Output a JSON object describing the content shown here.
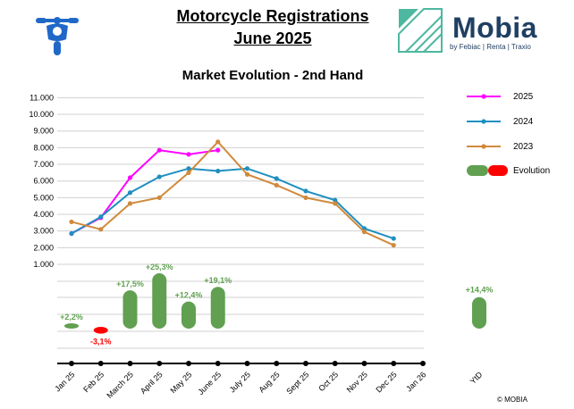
{
  "header": {
    "title_line1": "Motorcycle Registrations",
    "title_line2": "June 2025",
    "brand_name": "Mobia",
    "brand_tagline": "by Febiac | Renta | Traxio",
    "motorcycle_icon": "motorcycle-front-icon",
    "brand_icon": "mobia-logo-icon"
  },
  "footer": {
    "copyright": "© MOBIA"
  },
  "colors": {
    "y2025": "#ff00ff",
    "y2024": "#1f8fc0",
    "y2023": "#d08a3c",
    "positive": "#60a050",
    "negative": "#ff0000",
    "brand": "#1f3f63",
    "brand_accent": "#4db8a0"
  },
  "chart_data": {
    "type": "line",
    "title": "Market Evolution - 2nd Hand",
    "categories": [
      "Jan 25",
      "Feb 25",
      "March 25",
      "April 25",
      "May 25",
      "June 25",
      "July 25",
      "Aug 25",
      "Sept 25",
      "Oct 25",
      "Nov 25",
      "Dec 25",
      "Jan 26"
    ],
    "ylim": [
      0,
      11000
    ],
    "yticks": [
      "1.000",
      "2.000",
      "3.000",
      "4.000",
      "5.000",
      "6.000",
      "7.000",
      "8.000",
      "9.000",
      "10.000",
      "11.000"
    ],
    "grid": true,
    "legend_position": "right",
    "series": [
      {
        "name": "2025",
        "values": [
          2850,
          3800,
          6200,
          7850,
          7600,
          7850,
          null,
          null,
          null,
          null,
          null,
          null,
          null
        ]
      },
      {
        "name": "2024",
        "values": [
          2850,
          3850,
          5300,
          6250,
          6750,
          6600,
          6750,
          6150,
          5400,
          4850,
          3150,
          2550,
          null
        ]
      },
      {
        "name": "2023",
        "values": [
          3550,
          3100,
          4650,
          5000,
          6500,
          8350,
          6400,
          5750,
          5000,
          4650,
          2950,
          2150,
          null
        ]
      }
    ],
    "evolution": {
      "name": "Evolution",
      "categories": [
        "Jan 25",
        "Feb 25",
        "March 25",
        "April 25",
        "May 25",
        "June 25"
      ],
      "values": [
        2.2,
        -3.1,
        17.5,
        25.3,
        12.4,
        19.1
      ],
      "labels": [
        "+2,2%",
        "-3,1%",
        "+17,5%",
        "+25,3%",
        "+12,4%",
        "+19,1%"
      ],
      "ytd": {
        "label": "YtD",
        "value": 14.4,
        "text": "+14,4%"
      }
    }
  }
}
